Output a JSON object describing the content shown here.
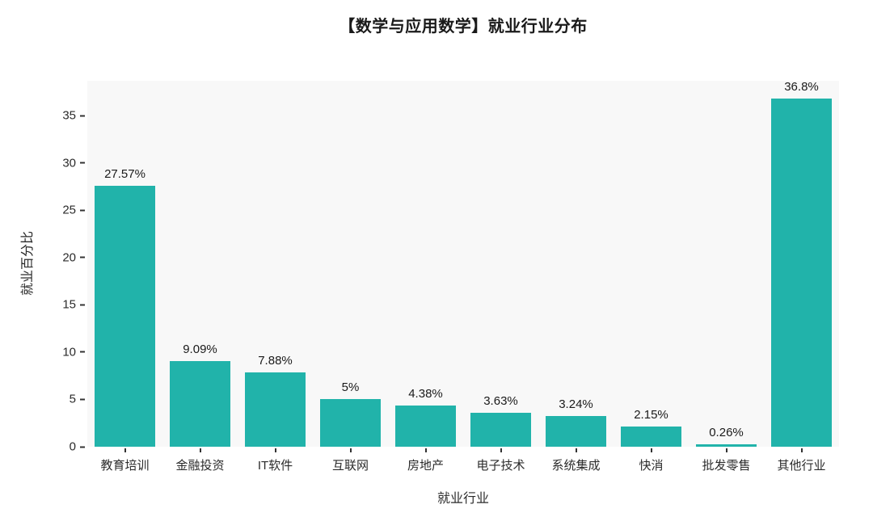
{
  "page": {
    "title": "【数学与应用数学】就业行业分布"
  },
  "chart_data": {
    "type": "bar",
    "title": "【数学与应用数学】就业行业分布",
    "xlabel": "就业行业",
    "ylabel": "就业百分比",
    "categories": [
      "教育培训",
      "金融投资",
      "IT软件",
      "互联网",
      "房地产",
      "电子技术",
      "系统集成",
      "快消",
      "批发零售",
      "其他行业"
    ],
    "values": [
      27.57,
      9.09,
      7.88,
      5,
      4.38,
      3.63,
      3.24,
      2.15,
      0.26,
      36.8
    ],
    "value_labels": [
      "27.57%",
      "9.09%",
      "7.88%",
      "5%",
      "4.38%",
      "3.63%",
      "3.24%",
      "2.15%",
      "0.26%",
      "36.8%"
    ],
    "yticks": [
      0,
      5,
      10,
      15,
      20,
      25,
      30,
      35
    ],
    "ylim": [
      0,
      38.7
    ],
    "grid": false,
    "legend": "none",
    "bar_color": "#21b3aa",
    "plot_bg": "#f8f8f8",
    "tick_color": "#333333"
  }
}
